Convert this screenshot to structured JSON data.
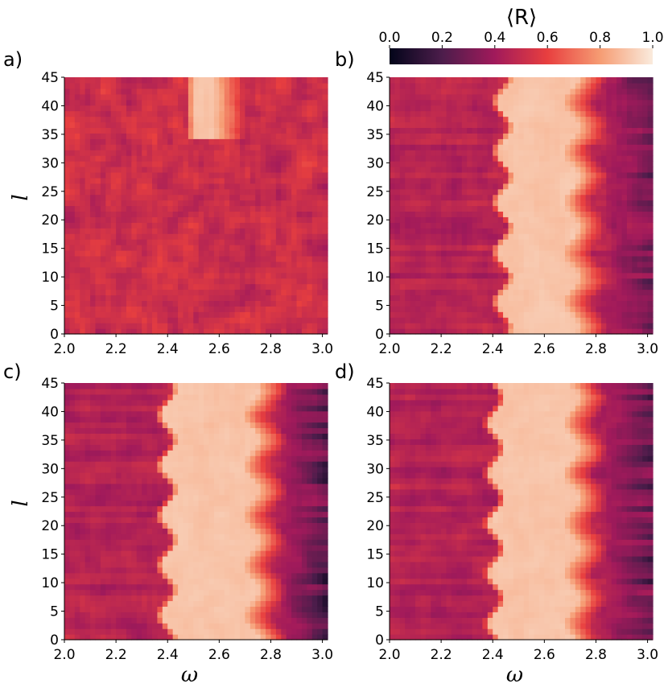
{
  "chart_data": [
    {
      "type": "heatmap",
      "panel_label": "a)",
      "xlabel": "",
      "ylabel": "l",
      "xlim": [
        2.0,
        3.02
      ],
      "ylim": [
        0,
        45
      ],
      "xticks": [
        "2.0",
        "2.2",
        "2.4",
        "2.6",
        "2.8",
        "3.0"
      ],
      "yticks": [
        "0",
        "5",
        "10",
        "15",
        "20",
        "25",
        "30",
        "35",
        "40",
        "45"
      ],
      "pattern": {
        "bright_band_low": 2.5,
        "bright_band_high": 2.58,
        "band_y_min": 34,
        "base_value": 0.52,
        "noise": 0.16,
        "right_dark": 0.0
      }
    },
    {
      "type": "heatmap",
      "panel_label": "b)",
      "xlabel": "",
      "ylabel": "",
      "xlim": [
        2.0,
        3.02
      ],
      "ylim": [
        0,
        45
      ],
      "xticks": [
        "2.0",
        "2.2",
        "2.4",
        "2.6",
        "2.8",
        "3.0"
      ],
      "yticks": [
        "0",
        "5",
        "10",
        "15",
        "20",
        "25",
        "30",
        "35",
        "40",
        "45"
      ],
      "pattern": {
        "bright_band_low": 2.45,
        "bright_band_high": 2.7,
        "band_y_min": 0,
        "base_value": 0.46,
        "noise": 0.1,
        "right_dark": 0.3
      }
    },
    {
      "type": "heatmap",
      "panel_label": "c)",
      "xlabel": "ω",
      "ylabel": "l",
      "xlim": [
        2.0,
        3.02
      ],
      "ylim": [
        0,
        45
      ],
      "xticks": [
        "2.0",
        "2.2",
        "2.4",
        "2.6",
        "2.8",
        "3.0"
      ],
      "yticks": [
        "0",
        "5",
        "10",
        "15",
        "20",
        "25",
        "30",
        "35",
        "40",
        "45"
      ],
      "pattern": {
        "bright_band_low": 2.41,
        "bright_band_high": 2.72,
        "band_y_min": 0,
        "base_value": 0.45,
        "noise": 0.09,
        "right_dark": 0.35
      }
    },
    {
      "type": "heatmap",
      "panel_label": "d)",
      "xlabel": "ω",
      "ylabel": "",
      "xlim": [
        2.0,
        3.02
      ],
      "ylim": [
        0,
        45
      ],
      "xticks": [
        "2.0",
        "2.2",
        "2.4",
        "2.6",
        "2.8",
        "3.0"
      ],
      "yticks": [
        "0",
        "5",
        "10",
        "15",
        "20",
        "25",
        "30",
        "35",
        "40",
        "45"
      ],
      "pattern": {
        "bright_band_low": 2.42,
        "bright_band_high": 2.7,
        "band_y_min": 0,
        "base_value": 0.45,
        "noise": 0.09,
        "right_dark": 0.35
      }
    }
  ],
  "colorbar": {
    "label": "⟨R⟩",
    "ticks": [
      "0.0",
      "0.2",
      "0.4",
      "0.6",
      "0.8",
      "1.0"
    ],
    "range": [
      0.0,
      1.0
    ],
    "colormap": "rocket",
    "colormap_stops": [
      "#03051a",
      "#4c1d4b",
      "#a11a5b",
      "#e83f3f",
      "#f69c73",
      "#faebdd"
    ]
  }
}
